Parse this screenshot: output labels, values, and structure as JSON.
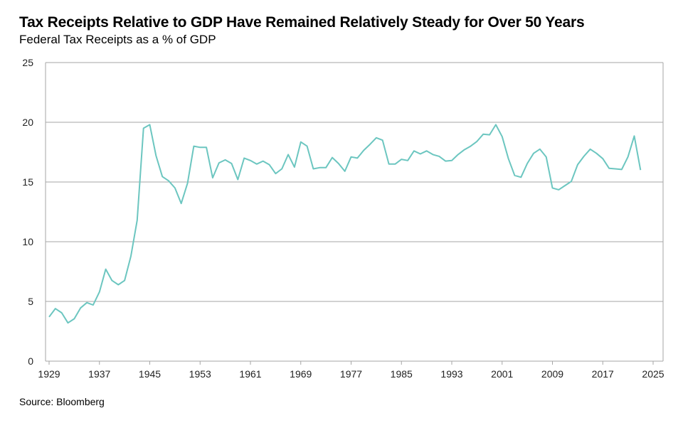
{
  "chart_data": {
    "type": "line",
    "title": "Tax Receipts Relative to GDP Have Remained Relatively Steady for Over 50 Years",
    "subtitle": "Federal Tax Receipts as a % of GDP",
    "source": "Source: Bloomberg",
    "xlabel": "",
    "ylabel": "",
    "xlim": [
      1929,
      2025
    ],
    "ylim": [
      0,
      25
    ],
    "x_ticks": [
      "1929",
      "1937",
      "1945",
      "1953",
      "1961",
      "1969",
      "1977",
      "1985",
      "1993",
      "2001",
      "2009",
      "2017",
      "2025"
    ],
    "y_ticks": [
      "0",
      "5",
      "10",
      "15",
      "20",
      "25"
    ],
    "grid": "horizontal",
    "line_color": "#6cc6c0",
    "grid_color": "#a6a6a6",
    "x": [
      1929,
      1930,
      1931,
      1932,
      1933,
      1934,
      1935,
      1936,
      1937,
      1938,
      1939,
      1940,
      1941,
      1942,
      1943,
      1944,
      1945,
      1946,
      1947,
      1948,
      1949,
      1950,
      1951,
      1952,
      1953,
      1954,
      1955,
      1956,
      1957,
      1958,
      1959,
      1960,
      1961,
      1962,
      1963,
      1964,
      1965,
      1966,
      1967,
      1968,
      1969,
      1970,
      1971,
      1972,
      1973,
      1974,
      1975,
      1976,
      1977,
      1978,
      1979,
      1980,
      1981,
      1982,
      1983,
      1984,
      1985,
      1986,
      1987,
      1988,
      1989,
      1990,
      1991,
      1992,
      1993,
      1994,
      1995,
      1996,
      1997,
      1998,
      1999,
      2000,
      2001,
      2002,
      2003,
      2004,
      2005,
      2006,
      2007,
      2008,
      2009,
      2010,
      2011,
      2012,
      2013,
      2014,
      2015,
      2016,
      2017,
      2018,
      2019,
      2020,
      2021,
      2022,
      2023
    ],
    "values": [
      3.7,
      4.4,
      4.05,
      3.2,
      3.55,
      4.45,
      4.9,
      4.7,
      5.8,
      7.7,
      6.75,
      6.4,
      6.75,
      8.8,
      11.8,
      19.5,
      19.8,
      17.2,
      15.45,
      15.1,
      14.5,
      13.2,
      14.9,
      18.0,
      17.9,
      17.9,
      15.35,
      16.6,
      16.85,
      16.55,
      15.2,
      17.0,
      16.8,
      16.5,
      16.75,
      16.45,
      15.7,
      16.1,
      17.3,
      16.25,
      18.35,
      18.0,
      16.1,
      16.2,
      16.2,
      17.05,
      16.55,
      15.9,
      17.1,
      17.0,
      17.65,
      18.15,
      18.7,
      18.5,
      16.5,
      16.5,
      16.9,
      16.8,
      17.6,
      17.35,
      17.6,
      17.3,
      17.15,
      16.75,
      16.8,
      17.3,
      17.7,
      18.0,
      18.4,
      19.0,
      18.95,
      19.8,
      18.8,
      16.95,
      15.55,
      15.4,
      16.55,
      17.4,
      17.75,
      17.1,
      14.5,
      14.35,
      14.7,
      15.05,
      16.45,
      17.15,
      17.75,
      17.4,
      16.95,
      16.15,
      16.1,
      16.05,
      17.1,
      18.85,
      16.0
    ]
  }
}
